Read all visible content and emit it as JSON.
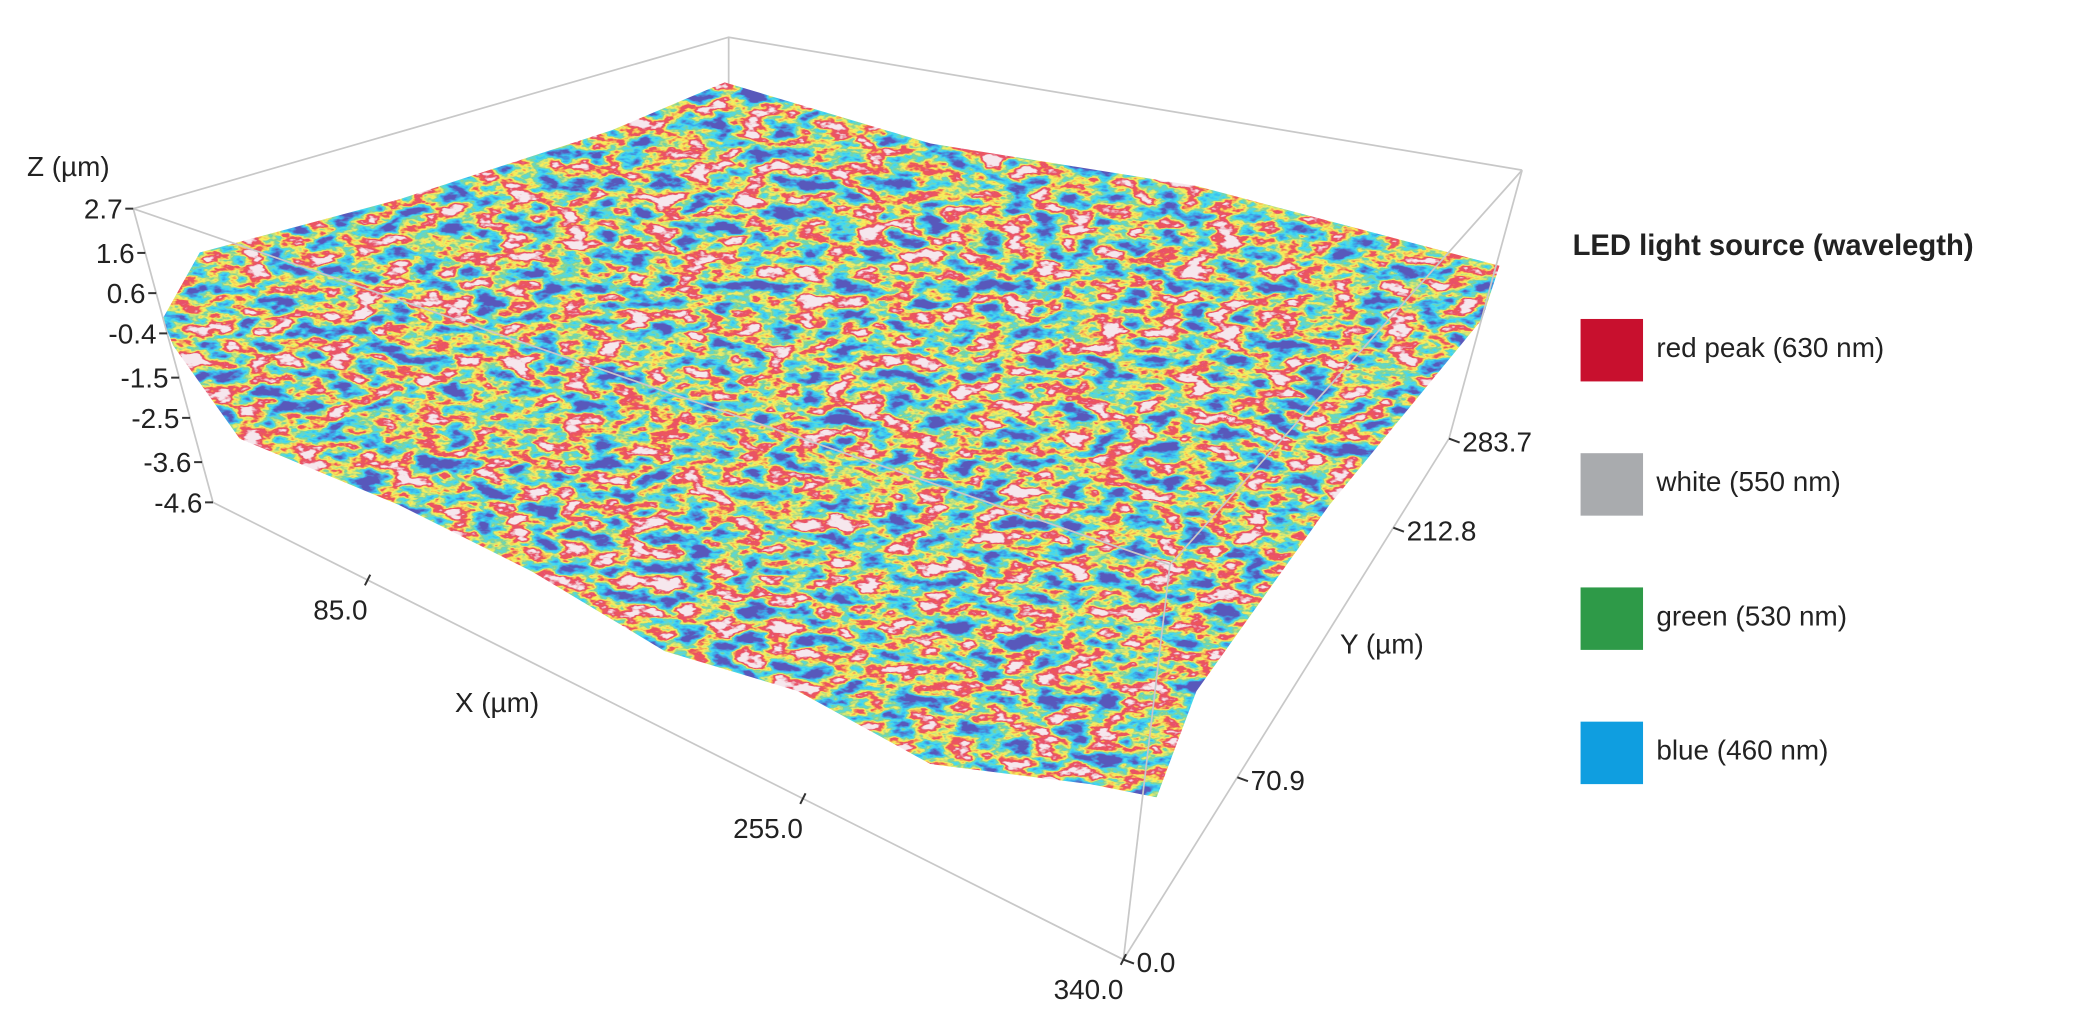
{
  "chart_data": {
    "type": "surface3d",
    "z_label": "Z (µm)",
    "x_label": "X (µm)",
    "y_label": "Y (µm)",
    "zlim": [
      -4.6,
      2.7
    ],
    "zticks": [
      2.7,
      1.6,
      0.6,
      -0.4,
      -1.5,
      -2.5,
      -3.6,
      -4.6
    ],
    "xlim": [
      0,
      340
    ],
    "xticks": [
      {
        "value": 85,
        "label": "85.0"
      },
      {
        "value": 255,
        "label": "255.0"
      },
      {
        "value": 340,
        "label": "340.0"
      }
    ],
    "ylim": [
      0,
      283.7
    ],
    "yticks": [
      {
        "value": 0,
        "label": "0.0"
      },
      70.9,
      212.8,
      283.7
    ],
    "legend": {
      "title": "LED light source (wavelegth)",
      "items": [
        {
          "name": "red peak (630 nm)",
          "color": "#c8102e"
        },
        {
          "name": "white (550 nm)",
          "color": "#a9abae"
        },
        {
          "name": "green (530 nm)",
          "color": "#2e9a48"
        },
        {
          "name": "blue (460 nm)",
          "color": "#0f9ee0"
        }
      ]
    }
  }
}
